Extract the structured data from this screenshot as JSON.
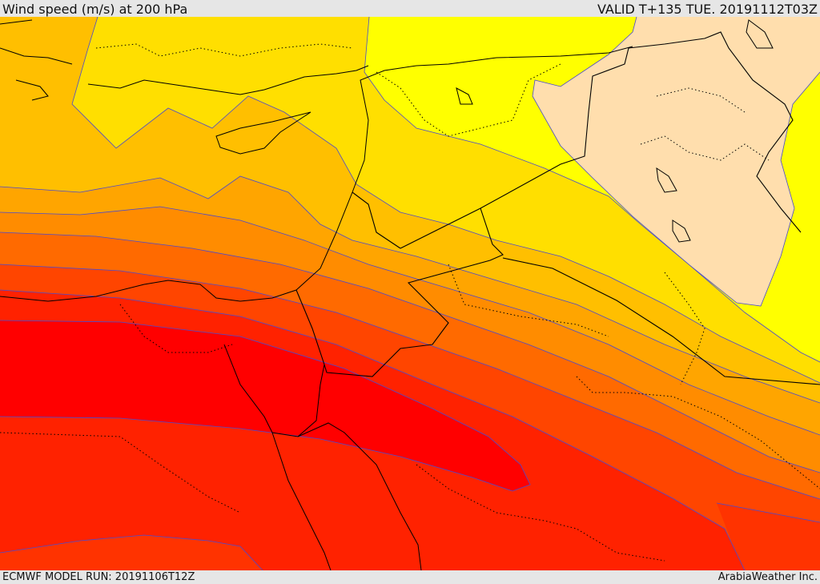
{
  "header": {
    "title": "Wind speed (m/s) at 200 hPa",
    "valid": "VALID T+135 TUE. 20191112T03Z"
  },
  "footer": {
    "model_run": "ECMWF MODEL RUN: 20191106T12Z",
    "credit": "ArabiaWeather Inc."
  },
  "map": {
    "field": "wind speed 200 hPa",
    "colors": [
      "#ffdead",
      "#ffff00",
      "#ffdf00",
      "#ffbf00",
      "#ffa500",
      "#ff8c00",
      "#ff6a00",
      "#ff4500",
      "#ff2200",
      "#ff0000"
    ]
  }
}
